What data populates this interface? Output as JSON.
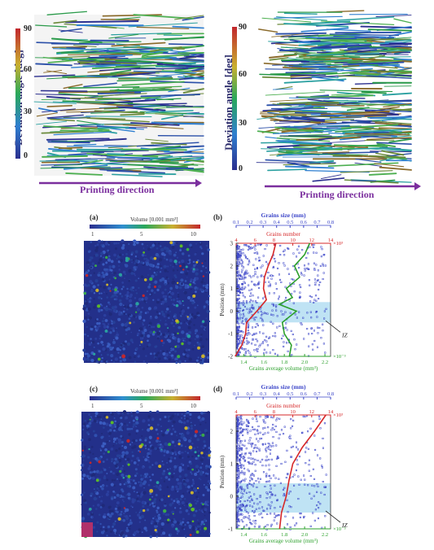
{
  "top": {
    "ylabel": "Deviation angle [deg]",
    "ticks": [
      "90",
      "60",
      "30",
      "0"
    ],
    "xlabel": "Printing direction"
  },
  "panels": {
    "a": {
      "tag": "(a)",
      "colorbar_title": "Volume [0.001 mm³]",
      "ticks": [
        "1",
        "5",
        "10"
      ]
    },
    "b": {
      "tag": "(b)",
      "top_title": "Grains size (mm)",
      "top_ticks": [
        "0.1",
        "0.2",
        "0.3",
        "0.4",
        "0.5",
        "0.6",
        "0.7",
        "0.8"
      ],
      "red_title": "Grains number",
      "red_ticks": [
        "4",
        "6",
        "8",
        "10",
        "12",
        "14"
      ],
      "red_mult": "×10³",
      "ylabel": "Position (mm)",
      "y_ticks": [
        "3",
        "2",
        "1",
        "0",
        "-1",
        "-2"
      ],
      "bottom_ticks": [
        "1.4",
        "1.6",
        "1.8",
        "2.0",
        "2.2"
      ],
      "bottom_title": "Grains average volume (mm³)",
      "bottom_mult": "×10⁻³",
      "iz_label": "IZ"
    },
    "c": {
      "tag": "(c)",
      "colorbar_title": "Volume [0.001 mm³]",
      "ticks": [
        "1",
        "5",
        "10"
      ]
    },
    "d": {
      "tag": "(d)",
      "top_title": "Grains size (mm)",
      "top_ticks": [
        "0.1",
        "0.2",
        "0.3",
        "0.4",
        "0.5",
        "0.6",
        "0.7",
        "0.8"
      ],
      "red_title": "Grains number",
      "red_ticks": [
        "4",
        "6",
        "8",
        "10",
        "12",
        "14"
      ],
      "red_mult": "×10³",
      "ylabel": "Position (mm)",
      "y_ticks": [
        "2",
        "1",
        "0",
        "-1"
      ],
      "bottom_ticks": [
        "1.4",
        "1.6",
        "1.8",
        "2.0",
        "2.2"
      ],
      "bottom_title": "Grains average volume (mm³)",
      "bottom_mult": "×10⁻³",
      "iz_label": "IZ"
    }
  },
  "chart_data": [
    {
      "type": "line",
      "panel": "b",
      "ylabel": "Position (mm)",
      "ylim": [
        -2,
        3
      ],
      "series": [
        {
          "name": "Grains number",
          "axis": "red (×10³)",
          "color": "#d62728",
          "points": [
            [
              3.9,
              -2.0
            ],
            [
              4.6,
              -1.5
            ],
            [
              5.0,
              -1.0
            ],
            [
              5.1,
              -0.5
            ],
            [
              6.2,
              0.0
            ],
            [
              7.2,
              0.5
            ],
            [
              6.9,
              1.0
            ],
            [
              7.0,
              1.5
            ],
            [
              7.4,
              2.0
            ],
            [
              7.9,
              2.5
            ],
            [
              8.2,
              3.0
            ]
          ]
        },
        {
          "name": "Grains average volume",
          "axis": "green (×10⁻³ mm³)",
          "color": "#2ca02c",
          "points": [
            [
              1.85,
              -2.0
            ],
            [
              1.87,
              -1.5
            ],
            [
              1.8,
              -1.0
            ],
            [
              1.78,
              -0.5
            ],
            [
              1.92,
              0.0
            ],
            [
              1.75,
              0.3
            ],
            [
              1.88,
              0.6
            ],
            [
              1.82,
              1.0
            ],
            [
              1.95,
              1.5
            ],
            [
              1.9,
              2.0
            ],
            [
              2.0,
              2.5
            ],
            [
              2.05,
              3.0
            ]
          ]
        }
      ]
    },
    {
      "type": "line",
      "panel": "d",
      "ylabel": "Position (mm)",
      "ylim": [
        -1,
        2.5
      ],
      "series": [
        {
          "name": "Grains number",
          "axis": "red (×10³)",
          "color": "#d62728",
          "points": [
            [
              8.6,
              -1.0
            ],
            [
              8.8,
              -0.5
            ],
            [
              9.3,
              0.0
            ],
            [
              9.6,
              0.5
            ],
            [
              10.0,
              1.0
            ],
            [
              11.0,
              1.5
            ],
            [
              12.3,
              2.0
            ],
            [
              13.5,
              2.5
            ]
          ]
        }
      ]
    }
  ]
}
